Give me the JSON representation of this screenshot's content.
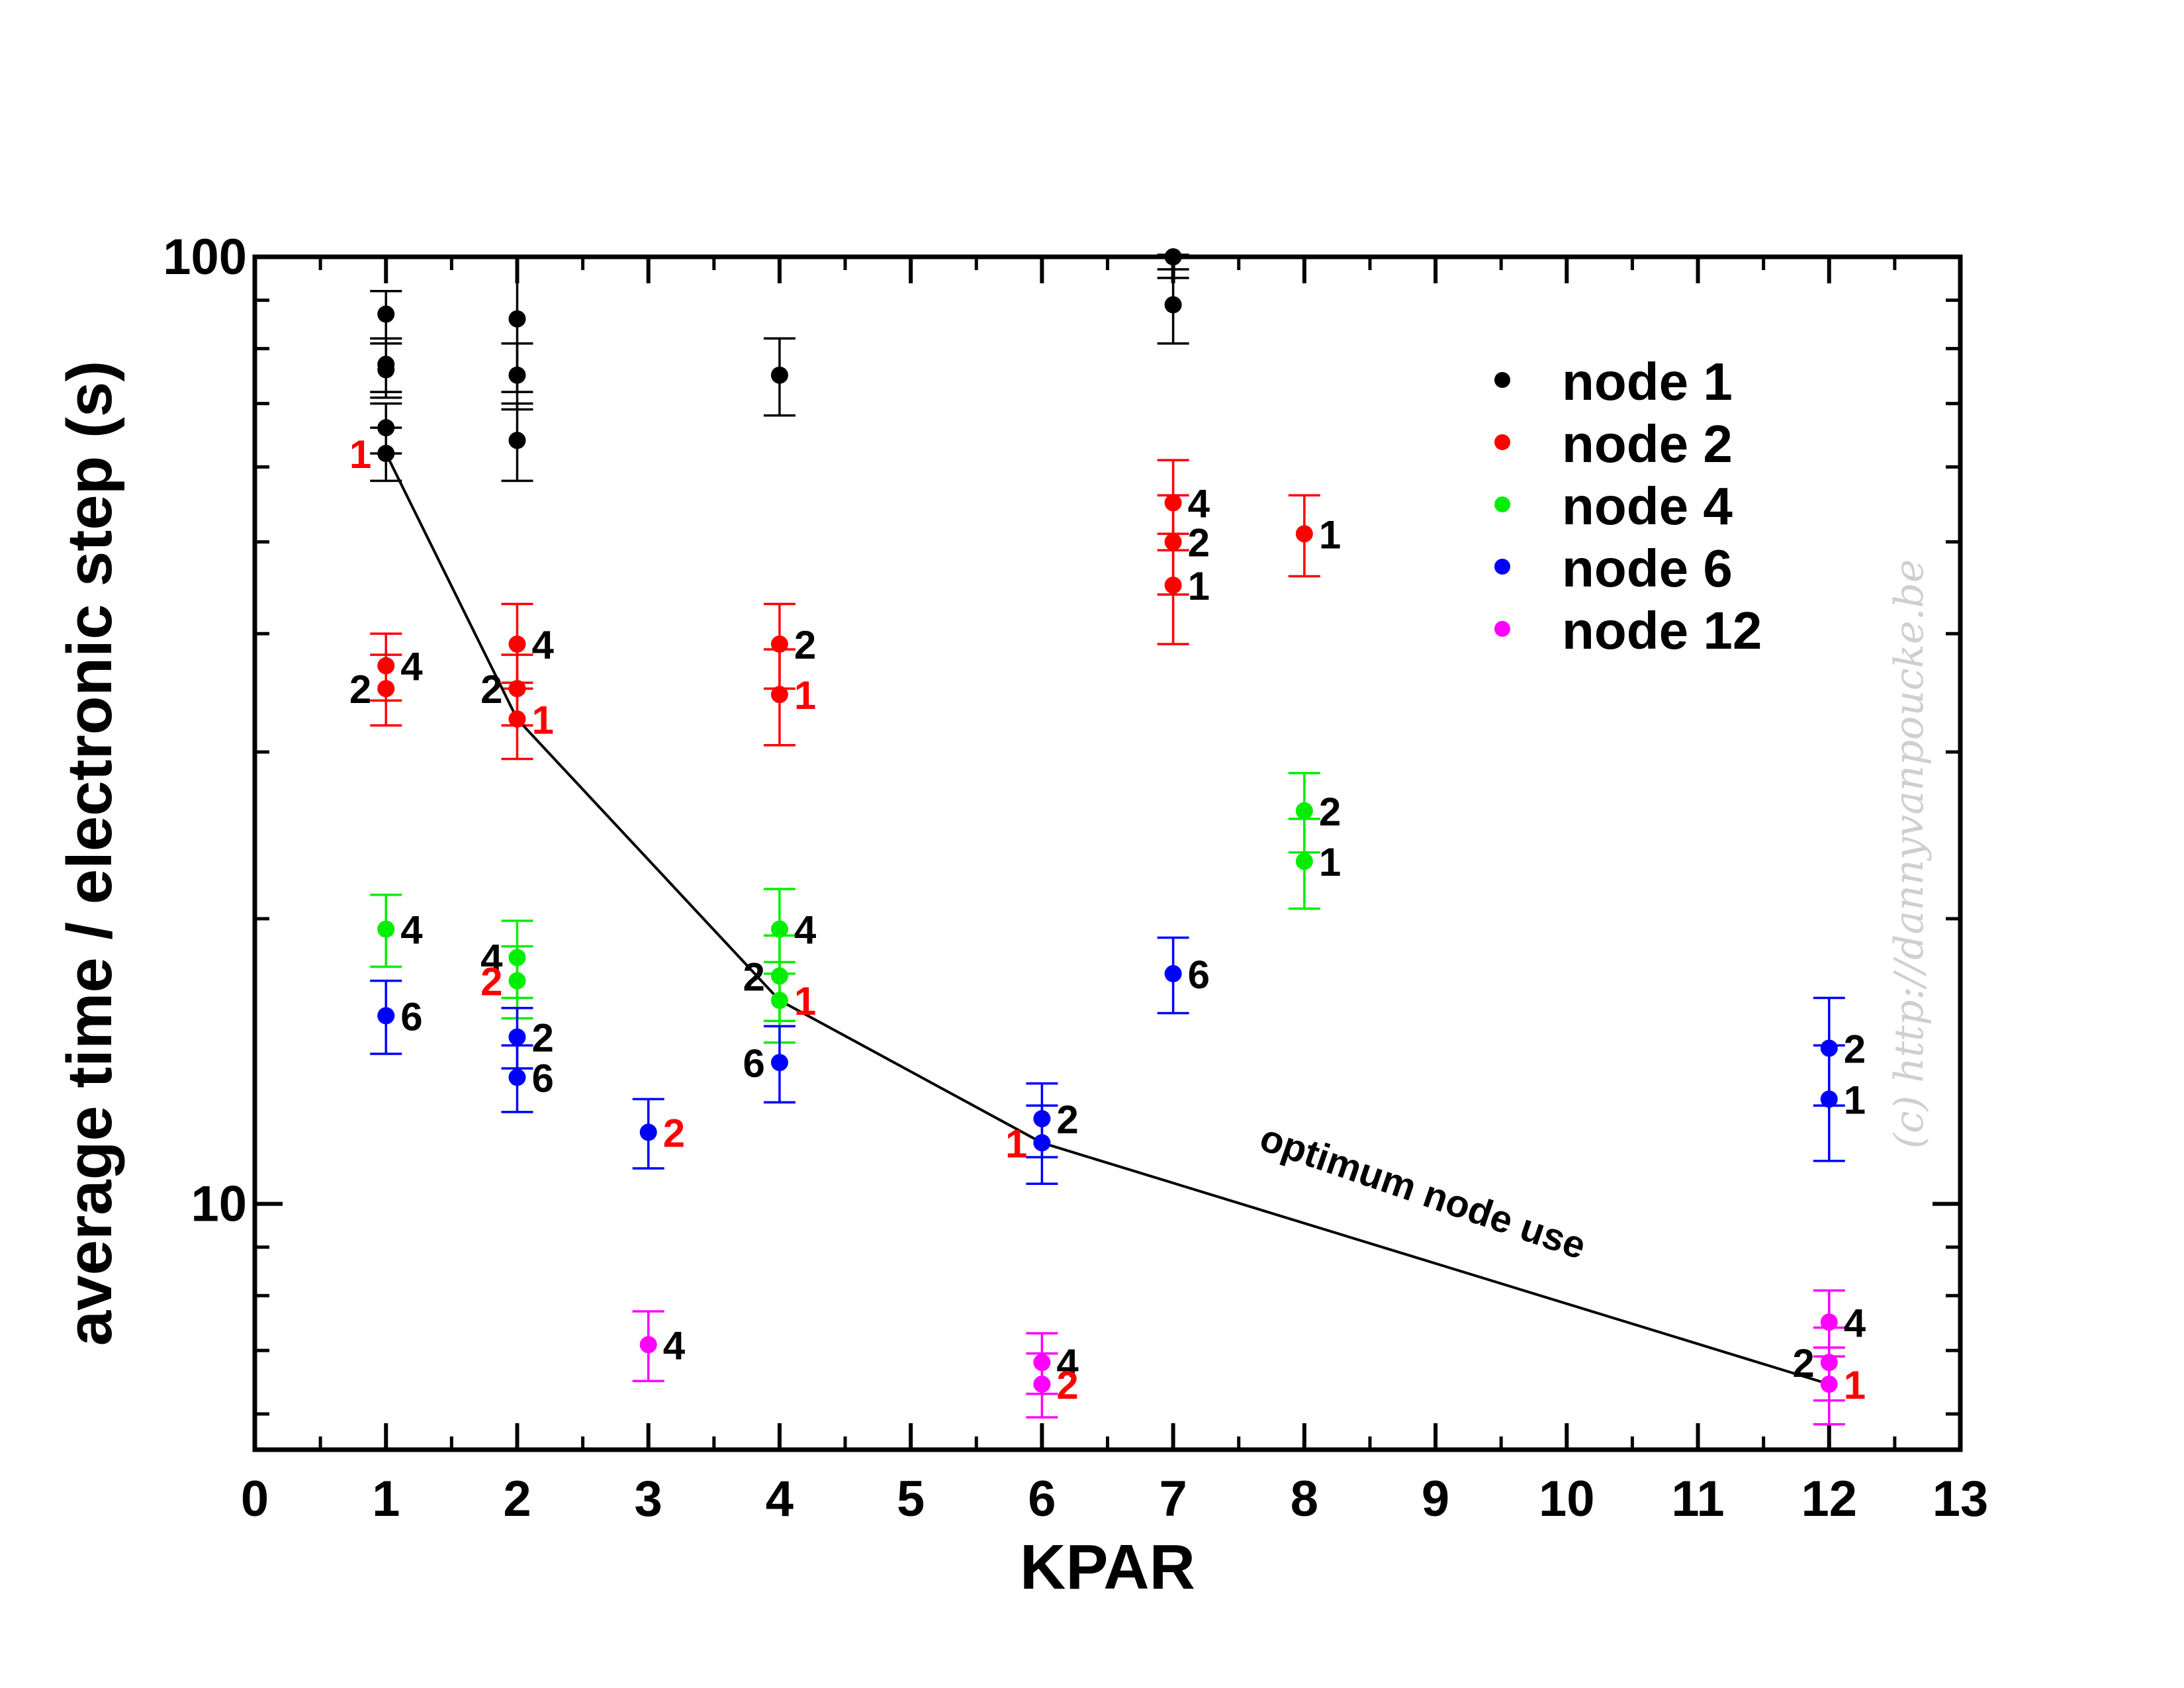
{
  "chart_data": {
    "type": "scatter",
    "xlabel": "KPAR",
    "ylabel": "average time / electronic step (s)",
    "xlim": [
      0,
      13
    ],
    "ylim": [
      5.5,
      100
    ],
    "yscale": "log",
    "xticks": [
      0,
      1,
      2,
      3,
      4,
      5,
      6,
      7,
      8,
      9,
      10,
      11,
      12,
      13
    ],
    "yticks": [
      10,
      100
    ],
    "legend_position": "top-right",
    "series": [
      {
        "name": "node 1",
        "color": "#000000",
        "points": [
          {
            "x": 1,
            "y": 87,
            "err": 5
          },
          {
            "x": 1,
            "y": 77,
            "err": 5
          },
          {
            "x": 1,
            "y": 76,
            "err": 5
          },
          {
            "x": 1,
            "y": 66,
            "err": 4
          },
          {
            "x": 1,
            "y": 62,
            "err": 4
          },
          {
            "x": 2,
            "y": 86,
            "err": 14
          },
          {
            "x": 2,
            "y": 75,
            "err": 6
          },
          {
            "x": 2,
            "y": 64,
            "err": 6
          },
          {
            "x": 4,
            "y": 75,
            "err": 7
          },
          {
            "x": 7,
            "y": 100,
            "err": 5
          },
          {
            "x": 7,
            "y": 89,
            "err": 8
          }
        ]
      },
      {
        "name": "node 2",
        "color": "#ff0000",
        "points": [
          {
            "x": 1,
            "y": 37,
            "err": 3,
            "label": "4"
          },
          {
            "x": 1,
            "y": 35,
            "err": 3,
            "label": "2"
          },
          {
            "x": 2,
            "y": 39,
            "err": 4,
            "label": "4"
          },
          {
            "x": 2,
            "y": 35,
            "err": 3,
            "label": "2"
          },
          {
            "x": 2,
            "y": 32.5,
            "err": 3,
            "label": "1"
          },
          {
            "x": 4,
            "y": 39,
            "err": 4,
            "label": "2"
          },
          {
            "x": 4,
            "y": 34.5,
            "err": 4,
            "label": "1"
          },
          {
            "x": 7,
            "y": 55,
            "err": 6,
            "label": "4"
          },
          {
            "x": 7,
            "y": 50,
            "err": 6,
            "label": "2"
          },
          {
            "x": 7,
            "y": 45,
            "err": 6,
            "label": "1"
          },
          {
            "x": 8,
            "y": 51,
            "err": 5,
            "label": "1"
          }
        ]
      },
      {
        "name": "node 4",
        "color": "#00ee00",
        "points": [
          {
            "x": 1,
            "y": 19.5,
            "err": 1.7,
            "label": "4"
          },
          {
            "x": 2,
            "y": 18.2,
            "err": 1.7,
            "label": "4"
          },
          {
            "x": 2,
            "y": 17.2,
            "err": 1.5,
            "label": "2"
          },
          {
            "x": 4,
            "y": 19.5,
            "err": 2,
            "label": "4"
          },
          {
            "x": 4,
            "y": 17.4,
            "err": 1.8,
            "label": "2"
          },
          {
            "x": 4,
            "y": 16.4,
            "err": 1.6,
            "label": "1"
          },
          {
            "x": 8,
            "y": 26,
            "err": 2.5,
            "label": "2"
          },
          {
            "x": 8,
            "y": 23,
            "err": 2.5,
            "label": "1"
          }
        ]
      },
      {
        "name": "node 6",
        "color": "#0000ff",
        "points": [
          {
            "x": 1,
            "y": 15.8,
            "err": 1.4,
            "label": "6"
          },
          {
            "x": 2,
            "y": 15.0,
            "err": 1.1,
            "label": "2"
          },
          {
            "x": 2,
            "y": 13.6,
            "err": 1.1,
            "label": "6"
          },
          {
            "x": 3,
            "y": 11.9,
            "err": 1.0,
            "label": "2"
          },
          {
            "x": 4,
            "y": 14.1,
            "err": 1.3,
            "label": "6"
          },
          {
            "x": 6,
            "y": 12.3,
            "err": 1.1,
            "label": "2"
          },
          {
            "x": 6,
            "y": 11.6,
            "err": 1.1,
            "label": "1"
          },
          {
            "x": 7,
            "y": 17.5,
            "err": 1.6,
            "label": "6"
          },
          {
            "x": 12,
            "y": 14.6,
            "err": 1.9,
            "label": "2"
          },
          {
            "x": 12,
            "y": 12.9,
            "err": 1.8,
            "label": "1"
          }
        ]
      },
      {
        "name": "node 12",
        "color": "#ff00ff",
        "points": [
          {
            "x": 3,
            "y": 7.1,
            "err": 0.6,
            "label": "4"
          },
          {
            "x": 6,
            "y": 6.8,
            "err": 0.5,
            "label": "4"
          },
          {
            "x": 6,
            "y": 6.45,
            "err": 0.5,
            "label": "2"
          },
          {
            "x": 12,
            "y": 7.5,
            "err": 0.6,
            "label": "4"
          },
          {
            "x": 12,
            "y": 6.8,
            "err": 0.6,
            "label": "2"
          },
          {
            "x": 12,
            "y": 6.45,
            "err": 0.6,
            "label": "1"
          }
        ]
      }
    ],
    "point_labels": [
      {
        "x": 1,
        "y": 62,
        "text": "1",
        "color": "#ff0000",
        "side": "left"
      },
      {
        "x": 1,
        "y": 37,
        "text": "4",
        "color": "#000000",
        "side": "right"
      },
      {
        "x": 1,
        "y": 35,
        "text": "2",
        "color": "#000000",
        "side": "left"
      },
      {
        "x": 2,
        "y": 39,
        "text": "4",
        "color": "#000000",
        "side": "right"
      },
      {
        "x": 2,
        "y": 35,
        "text": "2",
        "color": "#000000",
        "side": "left"
      },
      {
        "x": 2,
        "y": 32.5,
        "text": "1",
        "color": "#ff0000",
        "side": "right"
      },
      {
        "x": 4,
        "y": 39,
        "text": "2",
        "color": "#000000",
        "side": "right"
      },
      {
        "x": 4,
        "y": 34.5,
        "text": "1",
        "color": "#ff0000",
        "side": "right"
      },
      {
        "x": 7,
        "y": 55,
        "text": "4",
        "color": "#000000",
        "side": "right"
      },
      {
        "x": 7,
        "y": 50,
        "text": "2",
        "color": "#000000",
        "side": "right"
      },
      {
        "x": 7,
        "y": 45,
        "text": "1",
        "color": "#000000",
        "side": "right"
      },
      {
        "x": 8,
        "y": 51,
        "text": "1",
        "color": "#000000",
        "side": "right"
      },
      {
        "x": 1,
        "y": 19.5,
        "text": "4",
        "color": "#000000",
        "side": "right"
      },
      {
        "x": 2,
        "y": 18.2,
        "text": "4",
        "color": "#000000",
        "side": "left"
      },
      {
        "x": 2,
        "y": 17.2,
        "text": "2",
        "color": "#ff0000",
        "side": "left"
      },
      {
        "x": 4,
        "y": 19.5,
        "text": "4",
        "color": "#000000",
        "side": "right"
      },
      {
        "x": 4,
        "y": 17.4,
        "text": "2",
        "color": "#000000",
        "side": "left"
      },
      {
        "x": 4,
        "y": 16.4,
        "text": "1",
        "color": "#ff0000",
        "side": "right"
      },
      {
        "x": 8,
        "y": 26,
        "text": "2",
        "color": "#000000",
        "side": "right"
      },
      {
        "x": 8,
        "y": 23,
        "text": "1",
        "color": "#000000",
        "side": "right"
      },
      {
        "x": 1,
        "y": 15.8,
        "text": "6",
        "color": "#000000",
        "side": "right"
      },
      {
        "x": 2,
        "y": 15.0,
        "text": "2",
        "color": "#000000",
        "side": "right"
      },
      {
        "x": 2,
        "y": 13.6,
        "text": "6",
        "color": "#000000",
        "side": "right"
      },
      {
        "x": 3,
        "y": 11.9,
        "text": "2",
        "color": "#ff0000",
        "side": "right"
      },
      {
        "x": 4,
        "y": 14.1,
        "text": "6",
        "color": "#000000",
        "side": "left"
      },
      {
        "x": 6,
        "y": 12.3,
        "text": "2",
        "color": "#000000",
        "side": "right"
      },
      {
        "x": 6,
        "y": 11.6,
        "text": "1",
        "color": "#ff0000",
        "side": "left"
      },
      {
        "x": 7,
        "y": 17.5,
        "text": "6",
        "color": "#000000",
        "side": "right"
      },
      {
        "x": 12,
        "y": 14.6,
        "text": "2",
        "color": "#000000",
        "side": "right"
      },
      {
        "x": 12,
        "y": 12.9,
        "text": "1",
        "color": "#000000",
        "side": "right"
      },
      {
        "x": 3,
        "y": 7.1,
        "text": "4",
        "color": "#000000",
        "side": "right"
      },
      {
        "x": 6,
        "y": 6.8,
        "text": "4",
        "color": "#000000",
        "side": "right"
      },
      {
        "x": 6,
        "y": 6.45,
        "text": "2",
        "color": "#ff0000",
        "side": "right"
      },
      {
        "x": 12,
        "y": 7.5,
        "text": "4",
        "color": "#000000",
        "side": "right"
      },
      {
        "x": 12,
        "y": 6.8,
        "text": "2",
        "color": "#000000",
        "side": "left"
      },
      {
        "x": 12,
        "y": 6.45,
        "text": "1",
        "color": "#ff0000",
        "side": "right"
      }
    ],
    "optimum_line": {
      "x": [
        1,
        2,
        4,
        6,
        12
      ],
      "y": [
        62,
        32.5,
        16.4,
        11.6,
        6.45
      ]
    },
    "annotation": "optimum node use",
    "watermark": "(c) http://dannyvanpoucke.be"
  }
}
